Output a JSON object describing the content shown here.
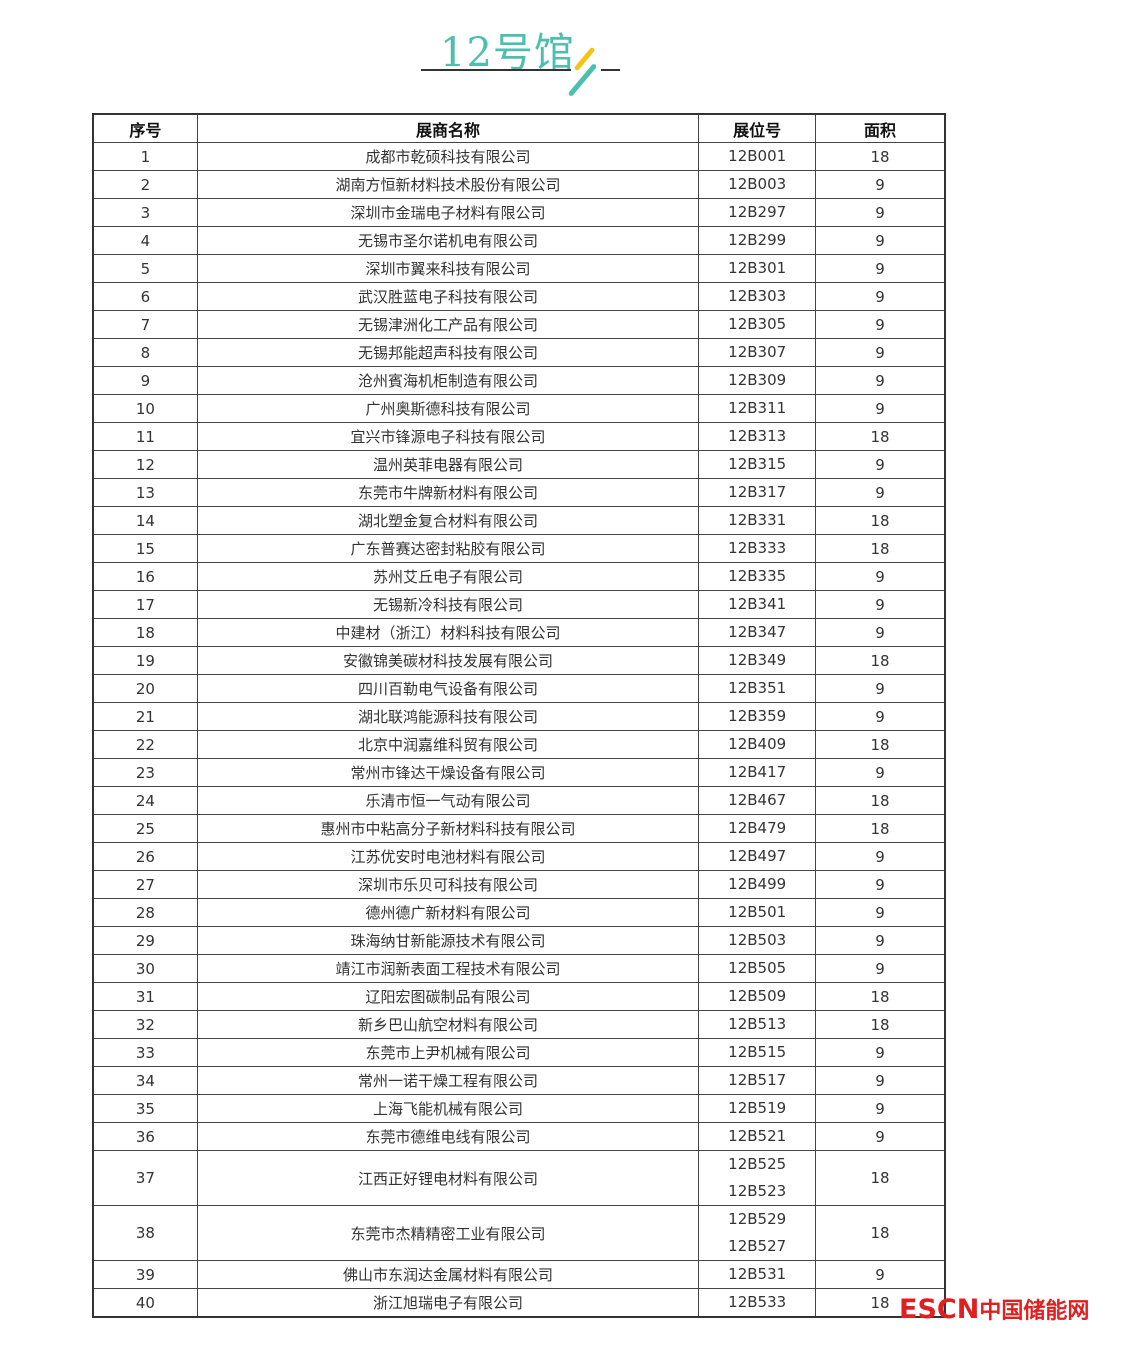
{
  "title": "12号馆",
  "header": {
    "no": "序号",
    "name": "展商名称",
    "booth": "展位号",
    "area": "面积"
  },
  "rows": [
    {
      "no": "1",
      "name": "成都市乾硕科技有限公司",
      "booth": [
        "12B001"
      ],
      "area": "18"
    },
    {
      "no": "2",
      "name": "湖南方恒新材料技术股份有限公司",
      "booth": [
        "12B003"
      ],
      "area": "9"
    },
    {
      "no": "3",
      "name": "深圳市金瑞电子材料有限公司",
      "booth": [
        "12B297"
      ],
      "area": "9"
    },
    {
      "no": "4",
      "name": "无锡市圣尔诺机电有限公司",
      "booth": [
        "12B299"
      ],
      "area": "9"
    },
    {
      "no": "5",
      "name": "深圳市翼来科技有限公司",
      "booth": [
        "12B301"
      ],
      "area": "9"
    },
    {
      "no": "6",
      "name": "武汉胜蓝电子科技有限公司",
      "booth": [
        "12B303"
      ],
      "area": "9"
    },
    {
      "no": "7",
      "name": "无锡津洲化工产品有限公司",
      "booth": [
        "12B305"
      ],
      "area": "9"
    },
    {
      "no": "8",
      "name": "无锡邦能超声科技有限公司",
      "booth": [
        "12B307"
      ],
      "area": "9"
    },
    {
      "no": "9",
      "name": "沧州賓海机柜制造有限公司",
      "booth": [
        "12B309"
      ],
      "area": "9"
    },
    {
      "no": "10",
      "name": "广州奥斯德科技有限公司",
      "booth": [
        "12B311"
      ],
      "area": "9"
    },
    {
      "no": "11",
      "name": "宜兴市锋源电子科技有限公司",
      "booth": [
        "12B313"
      ],
      "area": "18"
    },
    {
      "no": "12",
      "name": "温州英菲电器有限公司",
      "booth": [
        "12B315"
      ],
      "area": "9"
    },
    {
      "no": "13",
      "name": "东莞市牛牌新材料有限公司",
      "booth": [
        "12B317"
      ],
      "area": "9"
    },
    {
      "no": "14",
      "name": "湖北塑金复合材料有限公司",
      "booth": [
        "12B331"
      ],
      "area": "18"
    },
    {
      "no": "15",
      "name": "广东普赛达密封粘胶有限公司",
      "booth": [
        "12B333"
      ],
      "area": "18"
    },
    {
      "no": "16",
      "name": "苏州艾丘电子有限公司",
      "booth": [
        "12B335"
      ],
      "area": "9"
    },
    {
      "no": "17",
      "name": "无锡新冷科技有限公司",
      "booth": [
        "12B341"
      ],
      "area": "9"
    },
    {
      "no": "18",
      "name": "中建材（浙江）材料科技有限公司",
      "booth": [
        "12B347"
      ],
      "area": "9"
    },
    {
      "no": "19",
      "name": "安徽锦美碳材科技发展有限公司",
      "booth": [
        "12B349"
      ],
      "area": "18"
    },
    {
      "no": "20",
      "name": "四川百勒电气设备有限公司",
      "booth": [
        "12B351"
      ],
      "area": "9"
    },
    {
      "no": "21",
      "name": "湖北联鸿能源科技有限公司",
      "booth": [
        "12B359"
      ],
      "area": "9"
    },
    {
      "no": "22",
      "name": "北京中润嘉维科贸有限公司",
      "booth": [
        "12B409"
      ],
      "area": "18"
    },
    {
      "no": "23",
      "name": "常州市锋达干燥设备有限公司",
      "booth": [
        "12B417"
      ],
      "area": "9"
    },
    {
      "no": "24",
      "name": "乐清市恒一气动有限公司",
      "booth": [
        "12B467"
      ],
      "area": "18"
    },
    {
      "no": "25",
      "name": "惠州市中粘高分子新材料科技有限公司",
      "booth": [
        "12B479"
      ],
      "area": "18"
    },
    {
      "no": "26",
      "name": "江苏优安时电池材料有限公司",
      "booth": [
        "12B497"
      ],
      "area": "9"
    },
    {
      "no": "27",
      "name": "深圳市乐贝可科技有限公司",
      "booth": [
        "12B499"
      ],
      "area": "9"
    },
    {
      "no": "28",
      "name": "德州德广新材料有限公司",
      "booth": [
        "12B501"
      ],
      "area": "9"
    },
    {
      "no": "29",
      "name": "珠海纳甘新能源技术有限公司",
      "booth": [
        "12B503"
      ],
      "area": "9"
    },
    {
      "no": "30",
      "name": "靖江市润新表面工程技术有限公司",
      "booth": [
        "12B505"
      ],
      "area": "9"
    },
    {
      "no": "31",
      "name": "辽阳宏图碳制品有限公司",
      "booth": [
        "12B509"
      ],
      "area": "18"
    },
    {
      "no": "32",
      "name": "新乡巴山航空材料有限公司",
      "booth": [
        "12B513"
      ],
      "area": "18"
    },
    {
      "no": "33",
      "name": "东莞市上尹机械有限公司",
      "booth": [
        "12B515"
      ],
      "area": "9"
    },
    {
      "no": "34",
      "name": "常州一诺干燥工程有限公司",
      "booth": [
        "12B517"
      ],
      "area": "9"
    },
    {
      "no": "35",
      "name": "上海飞能机械有限公司",
      "booth": [
        "12B519"
      ],
      "area": "9"
    },
    {
      "no": "36",
      "name": "东莞市德维电线有限公司",
      "booth": [
        "12B521"
      ],
      "area": "9"
    },
    {
      "no": "37",
      "name": "江西正好锂电材料有限公司",
      "booth": [
        "12B525",
        "12B523"
      ],
      "area": "18"
    },
    {
      "no": "38",
      "name": "东莞市杰精精密工业有限公司",
      "booth": [
        "12B529",
        "12B527"
      ],
      "area": "18"
    },
    {
      "no": "39",
      "name": "佛山市东润达金属材料有限公司",
      "booth": [
        "12B531"
      ],
      "area": "9"
    },
    {
      "no": "40",
      "name": "浙江旭瑞电子有限公司",
      "booth": [
        "12B533"
      ],
      "area": "18"
    }
  ],
  "watermark": {
    "brand": "ESCN",
    "site": "中国储能网",
    "color": "#e02020"
  },
  "colors": {
    "title": "#4dbfae",
    "accent_yellow": "#f2c419"
  }
}
